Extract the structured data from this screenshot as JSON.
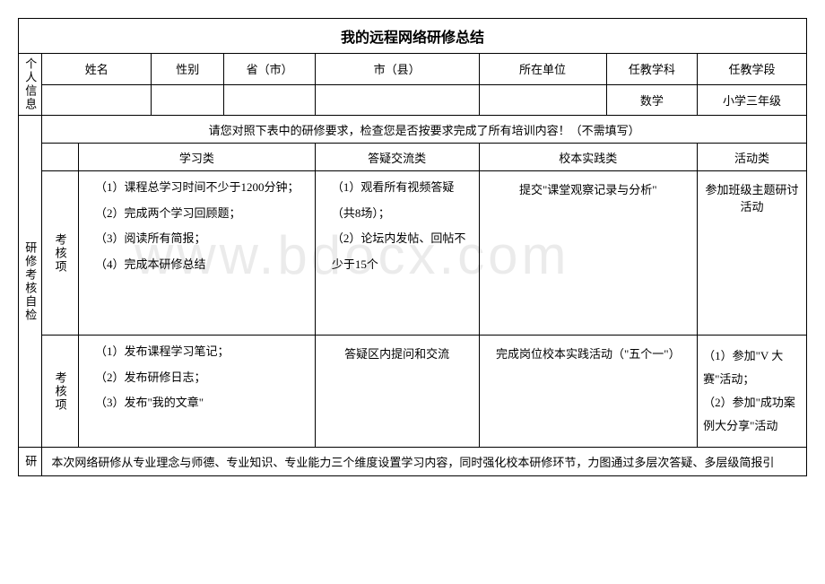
{
  "title": "我的远程网络研修总结",
  "watermark": "www.bdocx.com",
  "personal": {
    "section_label": "个人信息",
    "headers": [
      "姓名",
      "性别",
      "省（市）",
      "市（县）",
      "所在单位",
      "任教学科",
      "任教学段"
    ],
    "values": [
      "",
      "",
      "",
      "",
      "",
      "数学",
      "小学三年级"
    ]
  },
  "selfcheck": {
    "section_label": "研修考核自检",
    "note": "请您对照下表中的研修要求，检查您是否按要求完成了所有培训内容！（不需填写）",
    "col_headers": [
      "学习类",
      "答疑交流类",
      "校本实践类",
      "活动类"
    ],
    "row1_label": "考核项",
    "row1": {
      "c1": "（1）课程总学习时间不少于1200分钟；\n（2）完成两个学习回顾题；\n（3）阅读所有简报；\n（4）完成本研修总结",
      "c2": "（1）观看所有视频答疑（共8场）；\n（2）论坛内发帖、回帖不少于15个",
      "c3": "提交\"课堂观察记录与分析\"",
      "c4": "参加班级主题研讨活动"
    },
    "row2_label": "考核项",
    "row2": {
      "c1": "（1）发布课程学习笔记；\n（2）发布研修日志；\n（3）发布\"我的文章\"",
      "c2": "答疑区内提问和交流",
      "c3": "完成岗位校本实践活动（\"五个一\"）",
      "c4": "（1）参加\"V 大赛\"活动；\n（2）参加\"成功案例大分享\"活动"
    }
  },
  "summary": {
    "section_label": "研",
    "text": "本次网络研修从专业理念与师德、专业知识、专业能力三个维度设置学习内容，同时强化校本研修环节，力图通过多层次答疑、多层级简报引"
  }
}
